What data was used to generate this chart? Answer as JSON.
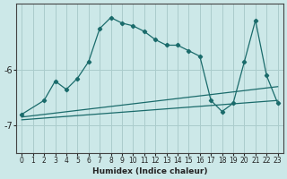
{
  "xlabel": "Humidex (Indice chaleur)",
  "ylabel": "",
  "bg_color": "#cce8e8",
  "grid_color": "#aacccc",
  "line_color": "#1a6b6b",
  "xlim": [
    -0.5,
    23.5
  ],
  "ylim": [
    -7.5,
    -4.8
  ],
  "yticks": [
    -7,
    -6
  ],
  "xticks": [
    0,
    1,
    2,
    3,
    4,
    5,
    6,
    7,
    8,
    9,
    10,
    11,
    12,
    13,
    14,
    15,
    16,
    17,
    18,
    19,
    20,
    21,
    22,
    23
  ],
  "curve1_x": [
    0,
    2,
    3,
    4,
    5,
    6,
    7,
    8,
    9,
    10,
    11,
    12,
    13,
    14,
    15,
    16,
    17,
    18,
    19,
    20,
    21,
    22,
    23
  ],
  "curve1_y": [
    -6.8,
    -6.55,
    -6.2,
    -6.35,
    -6.15,
    -5.85,
    -5.25,
    -5.05,
    -5.15,
    -5.2,
    -5.3,
    -5.45,
    -5.55,
    -5.55,
    -5.65,
    -5.75,
    -6.55,
    -6.75,
    -6.6,
    -5.85,
    -5.1,
    -6.1,
    -6.6
  ],
  "line1_x": [
    0,
    23
  ],
  "line1_y": [
    -6.85,
    -6.3
  ],
  "line2_x": [
    0,
    23
  ],
  "line2_y": [
    -6.9,
    -6.55
  ]
}
